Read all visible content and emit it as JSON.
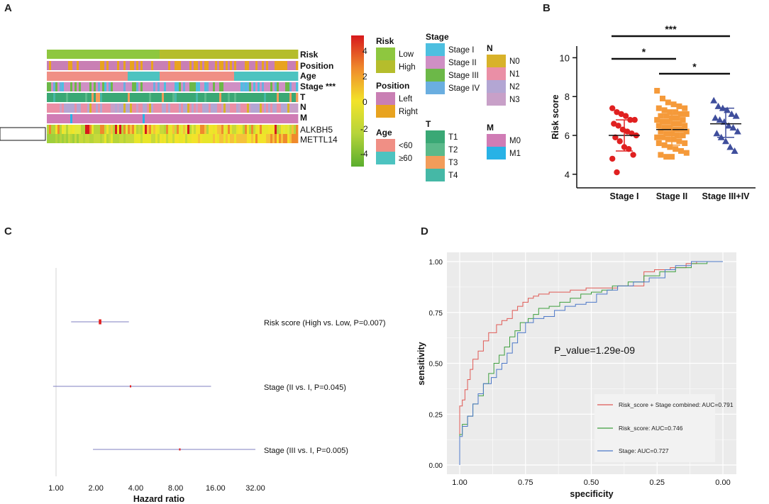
{
  "panels": {
    "A": "A",
    "B": "B",
    "C": "C",
    "D": "D"
  },
  "colors": {
    "risk_low": "#8ec73f",
    "risk_high": "#b5bd2c",
    "pos_left": "#c97fb4",
    "pos_right": "#e8a31f",
    "age_lt60": "#f08f85",
    "age_ge60": "#4dc3c0",
    "stage_I": "#4dbfe0",
    "stage_II": "#cf8fc4",
    "stage_III": "#6cb848",
    "stage_IV": "#6aaee0",
    "T1": "#3aa875",
    "T2": "#5bb98a",
    "T3": "#f29c5a",
    "T4": "#45b8a6",
    "N0": "#d8b22a",
    "N1": "#ea8fa6",
    "N2": "#b3a6d3",
    "N3": "#c8a0c8",
    "M0": "#d07cb5",
    "M1": "#28b2e6",
    "b_stage1": "#e02020",
    "b_stage2": "#f59a3a",
    "b_stage34": "#3f4e9c",
    "roc_combined": "#e05a55",
    "roc_risk": "#3fa03f",
    "roc_stage": "#4d78c8"
  },
  "panelA": {
    "tracks": [
      "Risk",
      "Position",
      "Age",
      "Stage ***",
      "T",
      "N",
      "M"
    ],
    "genes": [
      "ALKBH5",
      "METTL14"
    ],
    "colorbar_ticks": [
      "4",
      "2",
      "0",
      "-2",
      "-4"
    ],
    "legends": [
      {
        "title": "Risk",
        "items": [
          [
            "Low",
            "risk_low"
          ],
          [
            "High",
            "risk_high"
          ]
        ]
      },
      {
        "title": "Position",
        "items": [
          [
            "Left",
            "pos_left"
          ],
          [
            "Right",
            "pos_right"
          ]
        ]
      },
      {
        "title": "Age",
        "items": [
          [
            "<60",
            "age_lt60"
          ],
          [
            "≥60",
            "age_ge60"
          ]
        ]
      },
      {
        "title": "Stage",
        "items": [
          [
            "Stage I",
            "stage_I"
          ],
          [
            "Stage II",
            "stage_II"
          ],
          [
            "Stage III",
            "stage_III"
          ],
          [
            "Stage IV",
            "stage_IV"
          ]
        ]
      },
      {
        "title": "T",
        "items": [
          [
            "T1",
            "T1"
          ],
          [
            "T2",
            "T2"
          ],
          [
            "T3",
            "T3"
          ],
          [
            "T4",
            "T4"
          ]
        ]
      },
      {
        "title": "N",
        "items": [
          [
            "N0",
            "N0"
          ],
          [
            "N1",
            "N1"
          ],
          [
            "N2",
            "N2"
          ],
          [
            "N3",
            "N3"
          ]
        ]
      },
      {
        "title": "M",
        "items": [
          [
            "M0",
            "M0"
          ],
          [
            "M1",
            "M1"
          ]
        ]
      }
    ]
  },
  "chart_data": [
    {
      "type": "scatter",
      "panel": "B",
      "ylabel": "Risk score",
      "ylim": [
        3.3,
        10.6
      ],
      "yticks": [
        4,
        6,
        8,
        10
      ],
      "categories": [
        "Stage I",
        "Stage II",
        "Stage III+IV"
      ],
      "groups": [
        {
          "name": "Stage I",
          "marker": "circle",
          "color": "b_stage1",
          "mean": 6.0,
          "sd_low": 5.2,
          "sd_high": 6.8,
          "values": [
            7.4,
            7.2,
            7.1,
            7.0,
            6.8,
            6.8,
            6.6,
            6.5,
            6.3,
            6.2,
            6.1,
            6.0,
            5.9,
            5.7,
            5.4,
            5.3,
            5.0,
            4.8,
            4.1
          ]
        },
        {
          "name": "Stage II",
          "marker": "square",
          "color": "b_stage2",
          "mean": 6.3,
          "sd_low": 5.5,
          "sd_high": 7.1,
          "values": [
            8.3,
            7.9,
            7.7,
            7.6,
            7.5,
            7.4,
            7.4,
            7.3,
            7.2,
            7.2,
            7.1,
            7.1,
            7.0,
            7.0,
            6.9,
            6.9,
            6.8,
            6.8,
            6.7,
            6.7,
            6.6,
            6.6,
            6.5,
            6.5,
            6.4,
            6.4,
            6.3,
            6.3,
            6.2,
            6.2,
            6.1,
            6.1,
            6.0,
            6.0,
            5.9,
            5.9,
            5.8,
            5.8,
            5.7,
            5.6,
            5.6,
            5.5,
            5.4,
            5.3,
            5.2,
            5.1,
            5.0,
            4.9,
            4.9
          ]
        },
        {
          "name": "Stage III+IV",
          "marker": "triangle",
          "color": "b_stage34",
          "mean": 6.6,
          "sd_low": 5.9,
          "sd_high": 7.4,
          "values": [
            7.8,
            7.5,
            7.4,
            7.3,
            7.1,
            7.0,
            6.9,
            6.8,
            6.7,
            6.5,
            6.4,
            6.2,
            6.1,
            5.9,
            5.7,
            5.4,
            5.2
          ]
        }
      ],
      "significance": [
        {
          "from": 0,
          "to": 2,
          "label": "***"
        },
        {
          "from": 0,
          "to": 1,
          "label": "*"
        },
        {
          "from": 1,
          "to": 2,
          "label": "*"
        }
      ]
    },
    {
      "type": "forest",
      "panel": "C",
      "xlabel": "Hazard ratio",
      "xscale": "log2",
      "xticks": [
        1,
        2,
        4,
        8,
        16,
        32
      ],
      "xtick_labels": [
        "1.00",
        "2.00",
        "4.00",
        "8.00",
        "16.00",
        "32.00"
      ],
      "rows": [
        {
          "label": "Risk score (High vs. Low, P=0.007)",
          "hr": 2.15,
          "lo": 1.3,
          "hi": 3.55
        },
        {
          "label": "Stage (II vs. I, P=0.045)",
          "hr": 3.65,
          "lo": 0.95,
          "hi": 14.8
        },
        {
          "label": "Stage (III vs. I, P=0.005)",
          "hr": 8.6,
          "lo": 1.9,
          "hi": 37.5
        }
      ]
    },
    {
      "type": "line",
      "panel": "D",
      "xlabel": "specificity",
      "ylabel": "sensitivity",
      "xlim": [
        1.0,
        0.0
      ],
      "ylim": [
        0.0,
        1.0
      ],
      "xtick_labels": [
        "1.00",
        "0.75",
        "0.50",
        "0.25",
        "0.00"
      ],
      "ytick_labels": [
        "0.00",
        "0.25",
        "0.50",
        "0.75",
        "1.00"
      ],
      "annotation": "P_value=1.29e-09",
      "series": [
        {
          "name": "Risk_score + Stage combined: AUC=0.791",
          "color": "roc_combined",
          "x": [
            1.0,
            1.0,
            0.99,
            0.98,
            0.97,
            0.96,
            0.95,
            0.93,
            0.91,
            0.89,
            0.86,
            0.84,
            0.82,
            0.8,
            0.78,
            0.76,
            0.74,
            0.72,
            0.7,
            0.66,
            0.62,
            0.58,
            0.52,
            0.46,
            0.4,
            0.34,
            0.3,
            0.26,
            0.2,
            0.14,
            0.1,
            0.06,
            0.0
          ],
          "y": [
            0.0,
            0.25,
            0.29,
            0.32,
            0.37,
            0.42,
            0.47,
            0.52,
            0.56,
            0.61,
            0.65,
            0.69,
            0.71,
            0.72,
            0.76,
            0.78,
            0.8,
            0.82,
            0.83,
            0.84,
            0.85,
            0.85,
            0.86,
            0.87,
            0.87,
            0.88,
            0.88,
            0.95,
            0.96,
            0.97,
            0.99,
            1.0,
            1.0
          ]
        },
        {
          "name": "Risk_score: AUC=0.746",
          "color": "roc_risk",
          "x": [
            1.0,
            1.0,
            0.99,
            0.97,
            0.95,
            0.93,
            0.91,
            0.89,
            0.87,
            0.85,
            0.83,
            0.81,
            0.79,
            0.77,
            0.74,
            0.72,
            0.7,
            0.66,
            0.62,
            0.58,
            0.54,
            0.5,
            0.46,
            0.42,
            0.36,
            0.3,
            0.24,
            0.18,
            0.12,
            0.06,
            0.0
          ],
          "y": [
            0.0,
            0.12,
            0.15,
            0.2,
            0.24,
            0.3,
            0.34,
            0.4,
            0.45,
            0.5,
            0.54,
            0.58,
            0.63,
            0.66,
            0.7,
            0.72,
            0.74,
            0.77,
            0.78,
            0.8,
            0.82,
            0.84,
            0.85,
            0.86,
            0.88,
            0.9,
            0.93,
            0.95,
            0.97,
            0.99,
            1.0
          ]
        },
        {
          "name": "Stage: AUC=0.727",
          "color": "roc_stage",
          "x": [
            1.0,
            1.0,
            0.99,
            0.97,
            0.95,
            0.93,
            0.91,
            0.88,
            0.86,
            0.84,
            0.82,
            0.8,
            0.78,
            0.75,
            0.72,
            0.68,
            0.64,
            0.6,
            0.56,
            0.52,
            0.48,
            0.44,
            0.4,
            0.34,
            0.28,
            0.22,
            0.18,
            0.12,
            0.06,
            0.0
          ],
          "y": [
            0.0,
            0.1,
            0.14,
            0.19,
            0.24,
            0.3,
            0.35,
            0.4,
            0.43,
            0.47,
            0.5,
            0.55,
            0.6,
            0.65,
            0.7,
            0.72,
            0.73,
            0.76,
            0.78,
            0.79,
            0.8,
            0.84,
            0.86,
            0.88,
            0.9,
            0.92,
            0.96,
            0.98,
            1.0,
            1.0
          ]
        }
      ]
    }
  ]
}
